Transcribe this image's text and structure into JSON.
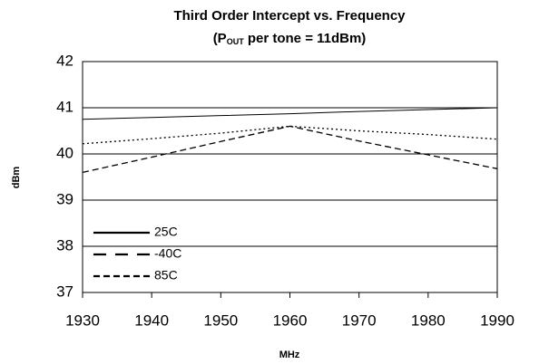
{
  "chart_data": {
    "type": "line",
    "title": "Third Order Intercept vs. Frequency",
    "subtitle": {
      "prefix": "(P",
      "subscript": "OUT",
      "suffix": " per tone = 11dBm)"
    },
    "x_label": "MHz",
    "y_label": "dBm",
    "x": [
      1930,
      1940,
      1950,
      1960,
      1970,
      1980,
      1990
    ],
    "series": [
      {
        "name": "25C",
        "color": "#000000",
        "style": "solid",
        "values": [
          40.75,
          40.79,
          40.83,
          40.87,
          40.92,
          40.96,
          41.0
        ]
      },
      {
        "name": "-40C",
        "color": "#000000",
        "style": "dotted",
        "values": [
          40.22,
          40.33,
          40.45,
          40.6,
          40.5,
          40.42,
          40.32
        ]
      },
      {
        "name": "85C",
        "color": "#000000",
        "style": "dashed",
        "values": [
          39.6,
          39.93,
          40.27,
          40.6,
          40.28,
          39.98,
          39.68
        ]
      }
    ],
    "xlim": [
      1930,
      1990
    ],
    "xticks": [
      1930,
      1940,
      1950,
      1960,
      1970,
      1980,
      1990
    ],
    "ylim": [
      37,
      42
    ],
    "yticks": [
      37,
      38,
      39,
      40,
      41,
      42
    ],
    "grid": true,
    "legend": "lower left"
  }
}
